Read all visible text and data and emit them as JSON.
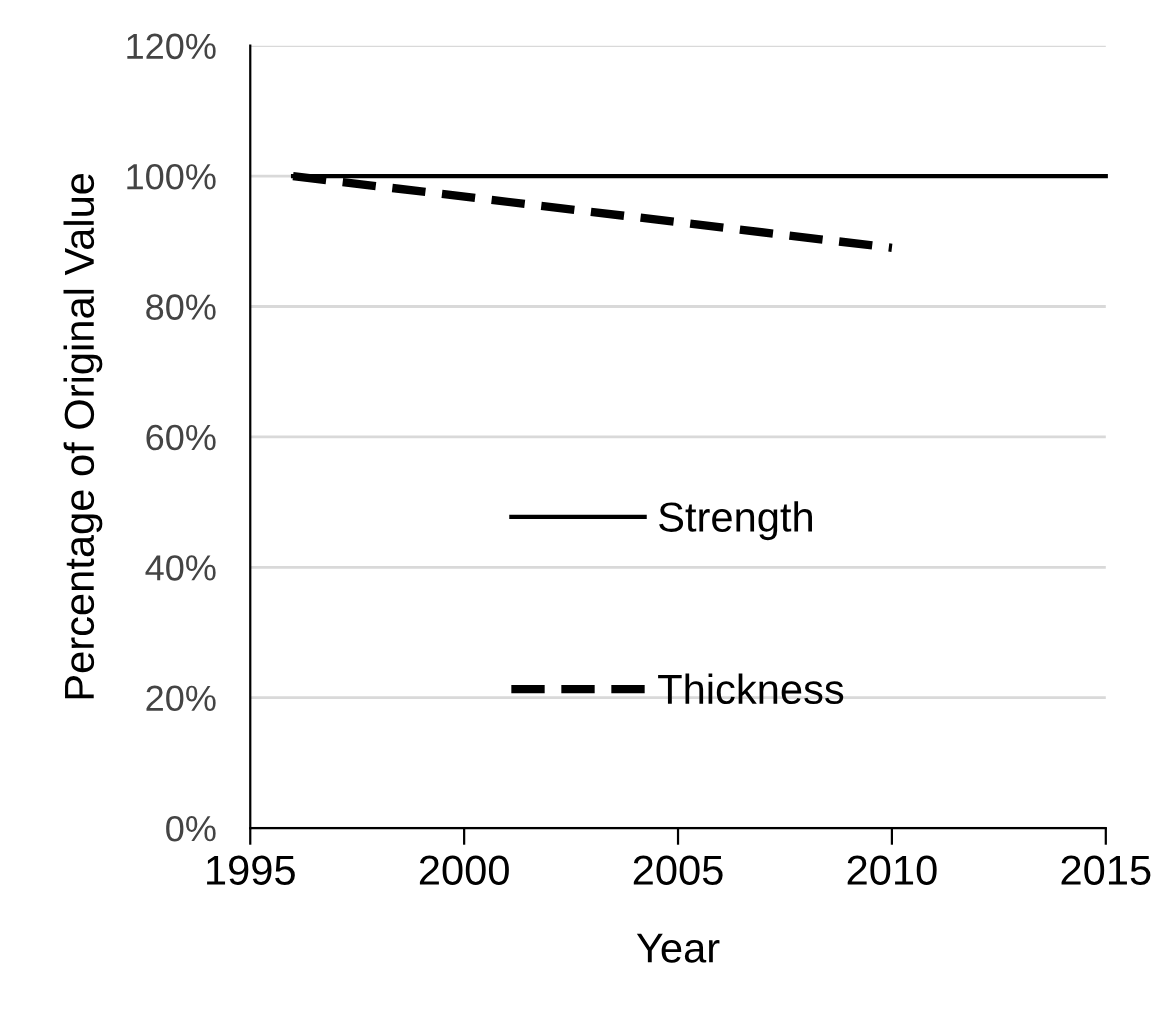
{
  "chart_data": {
    "type": "line",
    "xlabel": "Year",
    "ylabel": "Percentage of Original Value",
    "xlim": [
      1995,
      2015
    ],
    "xticks": [
      1995,
      2000,
      2005,
      2010,
      2015
    ],
    "ylim": [
      0,
      120
    ],
    "yticks": [
      {
        "value": 0,
        "label": "0%"
      },
      {
        "value": 20,
        "label": "20%"
      },
      {
        "value": 40,
        "label": "40%"
      },
      {
        "value": 60,
        "label": "60%"
      },
      {
        "value": 80,
        "label": "80%"
      },
      {
        "value": 100,
        "label": "100%"
      },
      {
        "value": 120,
        "label": "120%"
      }
    ],
    "grid": "y",
    "legend": "bottom",
    "marker": "none",
    "series": [
      {
        "name": "Strength",
        "color": "#000000",
        "line_style": "solid",
        "x": [
          1996,
          2015
        ],
        "values": [
          100,
          100
        ]
      },
      {
        "name": "Thickness",
        "color": "#000000",
        "line_style": "dashed",
        "x": [
          1996,
          2010
        ],
        "values": [
          100,
          89
        ]
      }
    ]
  }
}
